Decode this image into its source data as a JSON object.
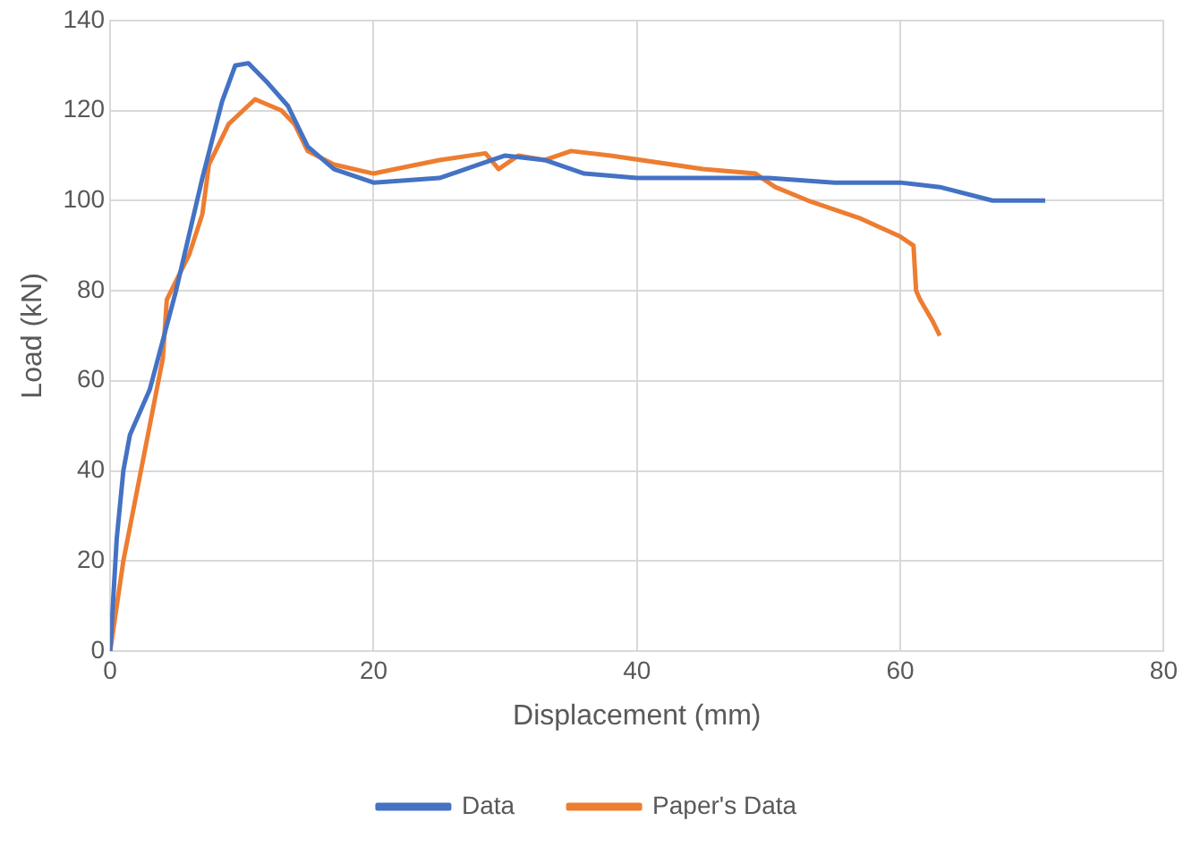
{
  "chart_data": {
    "type": "line",
    "xlabel": "Displacement (mm)",
    "ylabel": "Load (kN)",
    "xlim": [
      0,
      80
    ],
    "xticks": [
      0,
      20,
      40,
      60,
      80
    ],
    "ylim": [
      0,
      140
    ],
    "yticks": [
      0,
      20,
      40,
      60,
      80,
      100,
      120,
      140
    ],
    "grid": true,
    "legend": "bottom",
    "marker": "none",
    "line_style": "solid",
    "series": [
      {
        "name": "Data",
        "color": "#4472c4",
        "x": [
          0,
          0.5,
          1,
          1.5,
          3,
          5,
          7,
          8.5,
          9.5,
          10.5,
          12,
          13.5,
          15,
          17,
          20,
          25,
          28,
          30,
          33,
          36,
          40,
          45,
          50,
          55,
          60,
          63,
          67,
          71
        ],
        "values": [
          0,
          25,
          40,
          48,
          58,
          80,
          105,
          122,
          130,
          130.5,
          126,
          121,
          112,
          107,
          104,
          105,
          108,
          110,
          109,
          106,
          105,
          105,
          105,
          104,
          104,
          103,
          100,
          100
        ]
      },
      {
        "name": "Paper's Data",
        "color": "#ed7d31",
        "x": [
          0,
          1,
          2,
          3,
          4,
          4.3,
          6,
          7,
          7.5,
          9,
          11,
          13,
          14,
          15,
          17,
          20,
          25,
          28.5,
          29.5,
          31,
          33,
          35,
          38,
          45,
          49,
          50.5,
          53,
          55,
          57,
          60,
          61,
          61.2,
          61.5,
          62.5,
          63
        ],
        "values": [
          0,
          20,
          35,
          50,
          65,
          78,
          88,
          97,
          108,
          117,
          122.5,
          120,
          117,
          111,
          108,
          106,
          109,
          110.5,
          107,
          110,
          109,
          111,
          110,
          107,
          106,
          103,
          100,
          98,
          96,
          92,
          90,
          80,
          78,
          73,
          70
        ]
      }
    ]
  }
}
